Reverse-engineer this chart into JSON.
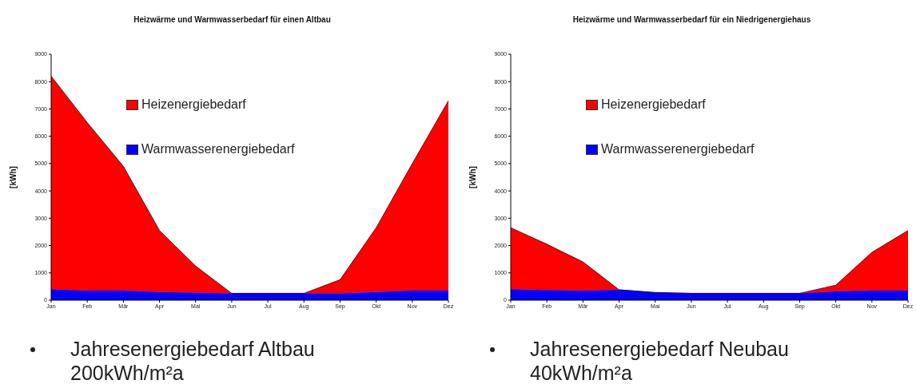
{
  "chart_data": [
    {
      "type": "area",
      "title": "Heizwärme und Warmwasserbedarf für einen Altbau",
      "ylabel": "[kWh]",
      "categories": [
        "Jan",
        "Feb",
        "Mär",
        "Apr",
        "Mai",
        "Jun",
        "Jul",
        "Aug",
        "Sep",
        "Okt",
        "Nov",
        "Dez"
      ],
      "stacked": true,
      "ylim": [
        0,
        9000
      ],
      "yticks": [
        0,
        1000,
        2000,
        3000,
        4000,
        5000,
        6000,
        7000,
        8000,
        9000
      ],
      "grid": false,
      "legend": "top",
      "annotations": [
        "Jahresenergiebedarf Altbau 200kWh/m²a"
      ],
      "series": [
        {
          "name": "Warmwasserenergiebedarf",
          "color": "#0000ff",
          "values": [
            400,
            350,
            350,
            300,
            280,
            250,
            250,
            250,
            250,
            300,
            350,
            350
          ]
        },
        {
          "name": "Heizenergiebedarf",
          "color": "#ff0000",
          "values": [
            7800,
            6150,
            4550,
            2250,
            970,
            0,
            0,
            0,
            500,
            2350,
            4650,
            6950
          ]
        }
      ]
    },
    {
      "type": "area",
      "title": "Heizwärme und Warmwasserbedarf für ein Niedrigenergiehaus",
      "ylabel": "[kWh]",
      "categories": [
        "Jan",
        "Feb",
        "Mär",
        "Apr",
        "Mai",
        "Jun",
        "Jul",
        "Aug",
        "Sep",
        "Okt",
        "Nov",
        "Dez"
      ],
      "stacked": true,
      "ylim": [
        0,
        9000
      ],
      "yticks": [
        0,
        1000,
        2000,
        3000,
        4000,
        5000,
        6000,
        7000,
        8000,
        9000
      ],
      "grid": false,
      "legend": "top",
      "annotations": [
        "Jahresenergiebedarf Neubau 40kWh/m²a"
      ],
      "series": [
        {
          "name": "Warmwasserenergiebedarf",
          "color": "#0000ff",
          "values": [
            400,
            370,
            350,
            380,
            280,
            250,
            250,
            250,
            250,
            320,
            350,
            350
          ]
        },
        {
          "name": "Heizenergiebedarf",
          "color": "#ff0000",
          "values": [
            2250,
            1680,
            1050,
            0,
            0,
            0,
            0,
            0,
            0,
            230,
            1400,
            2200
          ]
        }
      ]
    }
  ]
}
